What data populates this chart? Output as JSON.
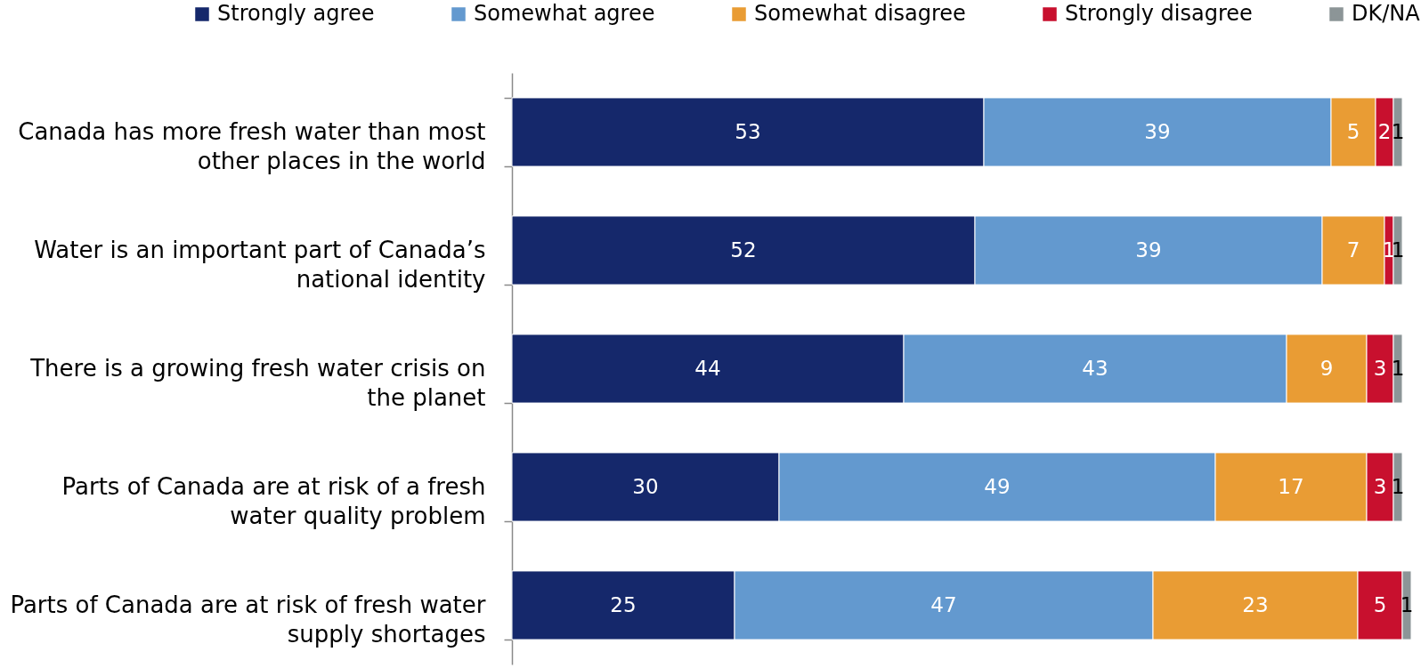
{
  "chart_data": {
    "type": "bar",
    "orientation": "horizontal",
    "stacked": true,
    "categories": [
      "Canada has more fresh water than most other places in the world",
      "Water is an important part of Canada’s national identity",
      "There is a growing fresh water crisis on the planet",
      "Parts of Canada are at risk of a fresh water quality problem",
      "Parts of Canada are at risk of fresh water supply shortages"
    ],
    "series": [
      {
        "name": "Strongly agree",
        "color": "#15286b",
        "values": [
          53,
          52,
          44,
          30,
          25
        ]
      },
      {
        "name": "Somewhat agree",
        "color": "#6399cf",
        "values": [
          39,
          39,
          43,
          49,
          47
        ]
      },
      {
        "name": "Somewhat disagree",
        "color": "#e99c34",
        "values": [
          5,
          7,
          9,
          17,
          23
        ]
      },
      {
        "name": "Strongly disagree",
        "color": "#c8102e",
        "values": [
          2,
          1,
          3,
          3,
          5
        ]
      },
      {
        "name": "DK/NA",
        "color": "#8c9597",
        "values": [
          1,
          1,
          1,
          1,
          1
        ]
      }
    ],
    "data_labels": true,
    "legend": "top",
    "tick_labels": "y"
  }
}
